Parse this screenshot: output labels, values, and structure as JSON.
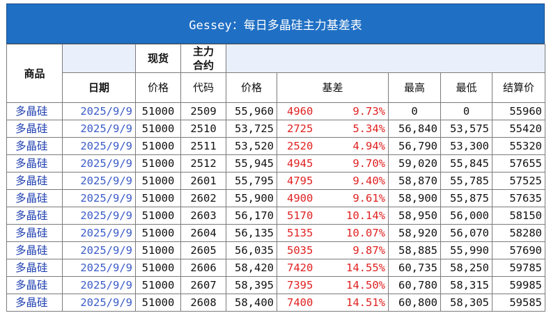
{
  "title": "Gessey：每日多晶硅主力基差表",
  "header": {
    "goods": "商品",
    "spot": "现货",
    "main_contract": "主力合约",
    "date": "日期",
    "price": "价格",
    "code": "代码",
    "futures_price": "价格",
    "basis": "基差",
    "high": "最高",
    "low": "最低",
    "settle": "结算价"
  },
  "rows": [
    {
      "goods": "多晶硅",
      "date": "2025/9/9",
      "spot": "51000",
      "code": "2509",
      "price": "55,960",
      "basis": "4960",
      "pct": "9.73%",
      "high": "0",
      "low": "0",
      "settle": "55960"
    },
    {
      "goods": "多晶硅",
      "date": "2025/9/9",
      "spot": "51000",
      "code": "2510",
      "price": "53,725",
      "basis": "2725",
      "pct": "5.34%",
      "high": "56,840",
      "low": "53,575",
      "settle": "55420"
    },
    {
      "goods": "多晶硅",
      "date": "2025/9/9",
      "spot": "51000",
      "code": "2511",
      "price": "53,520",
      "basis": "2520",
      "pct": "4.94%",
      "high": "56,790",
      "low": "53,300",
      "settle": "55320"
    },
    {
      "goods": "多晶硅",
      "date": "2025/9/9",
      "spot": "51000",
      "code": "2512",
      "price": "55,945",
      "basis": "4945",
      "pct": "9.70%",
      "high": "59,020",
      "low": "55,845",
      "settle": "57655"
    },
    {
      "goods": "多晶硅",
      "date": "2025/9/9",
      "spot": "51000",
      "code": "2601",
      "price": "55,795",
      "basis": "4795",
      "pct": "9.40%",
      "high": "58,870",
      "low": "55,785",
      "settle": "57525"
    },
    {
      "goods": "多晶硅",
      "date": "2025/9/9",
      "spot": "51000",
      "code": "2602",
      "price": "55,900",
      "basis": "4900",
      "pct": "9.61%",
      "high": "58,900",
      "low": "55,875",
      "settle": "57635"
    },
    {
      "goods": "多晶硅",
      "date": "2025/9/9",
      "spot": "51000",
      "code": "2603",
      "price": "56,170",
      "basis": "5170",
      "pct": "10.14%",
      "high": "58,950",
      "low": "56,000",
      "settle": "58150"
    },
    {
      "goods": "多晶硅",
      "date": "2025/9/9",
      "spot": "51000",
      "code": "2604",
      "price": "56,135",
      "basis": "5135",
      "pct": "10.07%",
      "high": "58,920",
      "low": "56,070",
      "settle": "58280"
    },
    {
      "goods": "多晶硅",
      "date": "2025/9/9",
      "spot": "51000",
      "code": "2605",
      "price": "56,035",
      "basis": "5035",
      "pct": "9.87%",
      "high": "58,885",
      "low": "55,990",
      "settle": "57690"
    },
    {
      "goods": "多晶硅",
      "date": "2025/9/9",
      "spot": "51000",
      "code": "2606",
      "price": "58,420",
      "basis": "7420",
      "pct": "14.55%",
      "high": "60,735",
      "low": "58,250",
      "settle": "59785"
    },
    {
      "goods": "多晶硅",
      "date": "2025/9/9",
      "spot": "51000",
      "code": "2607",
      "price": "58,395",
      "basis": "7395",
      "pct": "14.50%",
      "high": "60,780",
      "low": "58,315",
      "settle": "59985"
    },
    {
      "goods": "多晶硅",
      "date": "2025/9/9",
      "spot": "51000",
      "code": "2608",
      "price": "58,400",
      "basis": "7400",
      "pct": "14.51%",
      "high": "60,800",
      "low": "58,305",
      "settle": "59585"
    }
  ]
}
